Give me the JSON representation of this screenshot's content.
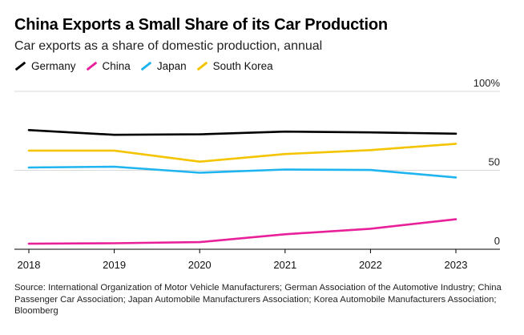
{
  "header": {
    "title": "China Exports a Small Share of its Car Production",
    "subtitle": "Car exports as a share of domestic production, annual"
  },
  "footer": {
    "source": "Source: International Organization of Motor Vehicle Manufacturers; German Association of the Automotive Industry; China Passenger Car Association; Japan Automobile Manufacturers Association; Korea Automobile Manufacturers Association; Bloomberg"
  },
  "chart_data": {
    "type": "line",
    "title": "China Exports a Small Share of its Car Production",
    "subtitle": "Car exports as a share of domestic production, annual",
    "x": [
      "2018",
      "2019",
      "2020",
      "2021",
      "2022",
      "2023"
    ],
    "y_ticks": [
      {
        "value": 100,
        "label": "100%"
      },
      {
        "value": 50,
        "label": "50"
      },
      {
        "value": 0,
        "label": "0"
      }
    ],
    "ylim": [
      0,
      100
    ],
    "grid": true,
    "legend_position": "top-left",
    "series": [
      {
        "name": "Germany",
        "color": "#000000",
        "values": [
          75.5,
          72.5,
          72.8,
          74.5,
          74,
          73.2
        ]
      },
      {
        "name": "China",
        "color": "#e8209a",
        "values": [
          3.5,
          3.8,
          4.5,
          9.5,
          13,
          19
        ]
      },
      {
        "name": "Japan",
        "color": "#1eb4f0",
        "values": [
          51.8,
          52.3,
          48.5,
          50.5,
          50.2,
          45.5
        ]
      },
      {
        "name": "South Korea",
        "color": "#f5c400",
        "values": [
          62.5,
          62.5,
          55.5,
          60.3,
          62.8,
          66.8
        ]
      }
    ]
  }
}
